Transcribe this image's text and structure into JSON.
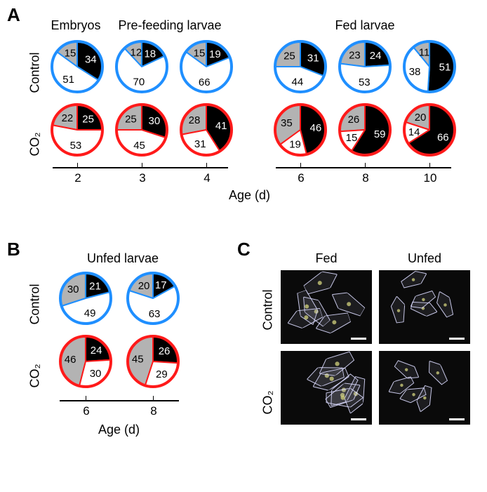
{
  "colors": {
    "black": "#000000",
    "gray": "#b3b3b3",
    "white": "#ffffff",
    "control_stroke": "#1f8fff",
    "co2_stroke": "#ff1a1a",
    "text": "#000000",
    "label_white": "#ffffff"
  },
  "panelA": {
    "label": "A",
    "headers": {
      "embryos": "Embryos",
      "prefeeding": "Pre-feeding larvae",
      "fed": "Fed larvae"
    },
    "row_labels": {
      "control": "Control",
      "co2": "CO₂"
    },
    "axis_label": "Age (d)",
    "ticks_left": [
      2,
      3,
      4
    ],
    "ticks_right": [
      6,
      8,
      10
    ],
    "pies": {
      "control": [
        {
          "age": 2,
          "black": 34,
          "gray": 15,
          "white": 51
        },
        {
          "age": 3,
          "black": 18,
          "gray": 12,
          "white": 70
        },
        {
          "age": 4,
          "black": 19,
          "gray": 15,
          "white": 66
        },
        {
          "age": 6,
          "black": 31,
          "gray": 25,
          "white": 44
        },
        {
          "age": 8,
          "black": 24,
          "gray": 23,
          "white": 53
        },
        {
          "age": 10,
          "black": 51,
          "gray": 11,
          "white": 38
        }
      ],
      "co2": [
        {
          "age": 2,
          "black": 25,
          "gray": 22,
          "white": 53
        },
        {
          "age": 3,
          "black": 30,
          "gray": 25,
          "white": 45
        },
        {
          "age": 4,
          "black": 41,
          "gray": 28,
          "white": 31
        },
        {
          "age": 6,
          "black": 46,
          "gray": 35,
          "white": 19
        },
        {
          "age": 8,
          "black": 59,
          "gray": 26,
          "white": 15
        },
        {
          "age": 10,
          "black": 66,
          "gray": 20,
          "white": 14
        }
      ]
    }
  },
  "panelB": {
    "label": "B",
    "header": "Unfed larvae",
    "row_labels": {
      "control": "Control",
      "co2": "CO₂"
    },
    "axis_label": "Age (d)",
    "ticks": [
      6,
      8
    ],
    "pies": {
      "control": [
        {
          "age": 6,
          "black": 21,
          "gray": 30,
          "white": 49
        },
        {
          "age": 8,
          "black": 17,
          "gray": 20,
          "white": 63
        }
      ],
      "co2": [
        {
          "age": 6,
          "black": 24,
          "gray": 46,
          "white": 30
        },
        {
          "age": 8,
          "black": 26,
          "gray": 45,
          "white": 29
        }
      ]
    }
  },
  "panelC": {
    "label": "C",
    "col_headers": {
      "fed": "Fed",
      "unfed": "Unfed"
    },
    "row_labels": {
      "control": "Control",
      "co2": "CO₂"
    }
  },
  "style": {
    "pie_radius": 38,
    "stroke_width": 4,
    "label_fontsize": 15
  }
}
